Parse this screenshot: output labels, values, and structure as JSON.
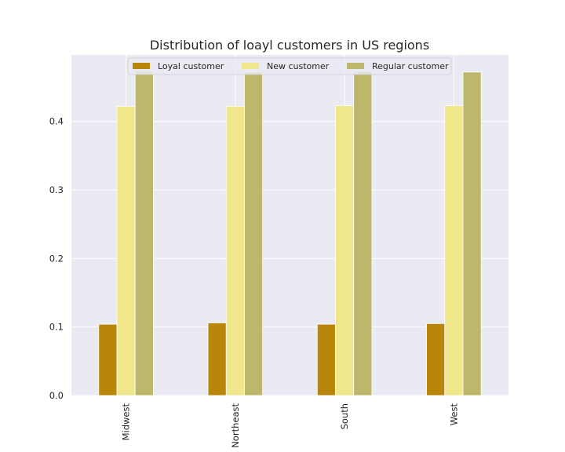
{
  "chart_data": {
    "type": "bar",
    "title": "Distribution of loayl customers in US regions",
    "xlabel": "",
    "ylabel": "",
    "categories": [
      "Midwest",
      "Northeast",
      "South",
      "West"
    ],
    "series": [
      {
        "name": "Loyal customer",
        "color": "#b8860b",
        "values": [
          0.104,
          0.106,
          0.104,
          0.105
        ]
      },
      {
        "name": "New customer",
        "color": "#f0e68c",
        "values": [
          0.422,
          0.422,
          0.423,
          0.423
        ]
      },
      {
        "name": "Regular customer",
        "color": "#bdb76b",
        "values": [
          0.474,
          0.472,
          0.473,
          0.472
        ]
      }
    ],
    "y_ticks": [
      "0.0",
      "0.1",
      "0.2",
      "0.3",
      "0.4"
    ],
    "ylim": [
      0,
      0.497
    ],
    "grid": true,
    "legend_position": "top-center",
    "background_color": "#eaeaf2"
  }
}
